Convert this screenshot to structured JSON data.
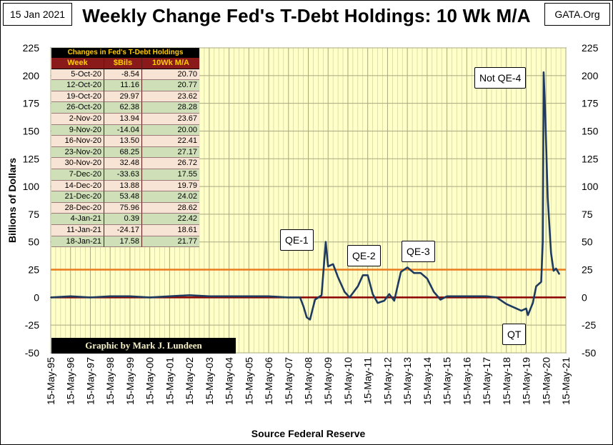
{
  "header": {
    "date": "15 Jan 2021",
    "title": "Weekly Change Fed's T-Debt Holdings: 10 Wk M/A",
    "source_site": "GATA.Org"
  },
  "table": {
    "title": "Changes in Fed's T-Debt Holdings",
    "columns": [
      "Week",
      "$Bils",
      "10Wk M/A"
    ],
    "rows": [
      [
        "5-Oct-20",
        "-8.54",
        "20.70"
      ],
      [
        "12-Oct-20",
        "11.16",
        "20.77"
      ],
      [
        "19-Oct-20",
        "29.97",
        "23.62"
      ],
      [
        "26-Oct-20",
        "62.38",
        "28.28"
      ],
      [
        "2-Nov-20",
        "13.94",
        "23.67"
      ],
      [
        "9-Nov-20",
        "-14.04",
        "20.00"
      ],
      [
        "16-Nov-20",
        "13.50",
        "22.41"
      ],
      [
        "23-Nov-20",
        "68.25",
        "27.17"
      ],
      [
        "30-Nov-20",
        "32.48",
        "26.72"
      ],
      [
        "7-Dec-20",
        "-33.63",
        "17.55"
      ],
      [
        "14-Dec-20",
        "13.88",
        "19.79"
      ],
      [
        "21-Dec-20",
        "53.48",
        "24.02"
      ],
      [
        "28-Dec-20",
        "75.96",
        "28.62"
      ],
      [
        "4-Jan-21",
        "0.39",
        "22.42"
      ],
      [
        "11-Jan-21",
        "-24.17",
        "18.61"
      ],
      [
        "18-Jan-21",
        "17.58",
        "21.77"
      ]
    ]
  },
  "annotations": {
    "qe1": "QE-1",
    "qe2": "QE-2",
    "qe3": "QE-3",
    "qe4": "Not QE-4",
    "qt": "QT"
  },
  "credit": "Graphic by Mark J. Lundeen",
  "colors": {
    "plot_bg": "#ffffc8",
    "grid": "#c8c8a0",
    "series": "#1f3a5f",
    "ref_line_25": "#e87c1e",
    "zero_line": "#8b0000"
  },
  "chart_data": {
    "type": "line",
    "title": "Weekly Change Fed's T-Debt Holdings: 10 Wk M/A",
    "xlabel": "Source Federal Reserve",
    "ylabel": "Billions  of  Dollars",
    "ylim": [
      -50,
      225
    ],
    "yticks": [
      -50,
      -25,
      0,
      25,
      50,
      75,
      100,
      125,
      150,
      175,
      200,
      225
    ],
    "xticks": [
      "15-May-95",
      "15-May-96",
      "15-May-97",
      "15-May-98",
      "15-May-99",
      "15-May-00",
      "15-May-01",
      "15-May-02",
      "15-May-03",
      "15-May-04",
      "15-May-05",
      "15-May-06",
      "15-May-07",
      "15-May-08",
      "15-May-09",
      "15-May-10",
      "15-May-11",
      "15-May-12",
      "15-May-13",
      "15-May-14",
      "15-May-15",
      "15-May-16",
      "15-May-17",
      "15-May-18",
      "15-May-19",
      "15-May-20",
      "15-May-21"
    ],
    "grid": true,
    "reference_lines": [
      25,
      0
    ],
    "series": [
      {
        "values": [
          [
            "1995-05-15",
            0
          ],
          [
            "1996-05-15",
            1
          ],
          [
            "1997-05-15",
            0
          ],
          [
            "1998-05-15",
            1
          ],
          [
            "1999-05-15",
            1
          ],
          [
            "2000-05-15",
            0
          ],
          [
            "2001-05-15",
            1
          ],
          [
            "2002-05-15",
            2
          ],
          [
            "2003-05-15",
            1
          ],
          [
            "2004-05-15",
            1
          ],
          [
            "2005-05-15",
            1
          ],
          [
            "2006-05-15",
            1
          ],
          [
            "2007-05-15",
            0
          ],
          [
            "2007-12-15",
            0
          ],
          [
            "2008-02-15",
            -8
          ],
          [
            "2008-04-15",
            -18
          ],
          [
            "2008-06-15",
            -20
          ],
          [
            "2008-09-15",
            -2
          ],
          [
            "2009-01-15",
            2
          ],
          [
            "2009-04-01",
            50
          ],
          [
            "2009-05-15",
            28
          ],
          [
            "2009-08-15",
            30
          ],
          [
            "2009-11-15",
            18
          ],
          [
            "2010-03-15",
            5
          ],
          [
            "2010-06-15",
            0
          ],
          [
            "2010-11-15",
            10
          ],
          [
            "2011-02-15",
            20
          ],
          [
            "2011-05-15",
            20
          ],
          [
            "2011-08-15",
            3
          ],
          [
            "2011-11-15",
            -5
          ],
          [
            "2012-03-15",
            -3
          ],
          [
            "2012-06-15",
            3
          ],
          [
            "2012-09-15",
            -3
          ],
          [
            "2013-01-15",
            23
          ],
          [
            "2013-05-15",
            27
          ],
          [
            "2013-09-15",
            22
          ],
          [
            "2014-01-15",
            22
          ],
          [
            "2014-05-15",
            17
          ],
          [
            "2014-09-15",
            5
          ],
          [
            "2015-01-15",
            -2
          ],
          [
            "2015-05-15",
            1
          ],
          [
            "2016-05-15",
            1
          ],
          [
            "2017-05-15",
            1
          ],
          [
            "2017-11-15",
            0
          ],
          [
            "2018-05-15",
            -6
          ],
          [
            "2018-11-15",
            -10
          ],
          [
            "2019-02-15",
            -12
          ],
          [
            "2019-05-15",
            -10
          ],
          [
            "2019-06-15",
            -16
          ],
          [
            "2019-09-15",
            -5
          ],
          [
            "2019-11-15",
            10
          ],
          [
            "2020-02-15",
            14
          ],
          [
            "2020-03-15",
            50
          ],
          [
            "2020-04-01",
            203
          ],
          [
            "2020-05-01",
            165
          ],
          [
            "2020-06-15",
            90
          ],
          [
            "2020-08-15",
            40
          ],
          [
            "2020-10-01",
            24
          ],
          [
            "2020-11-15",
            26
          ],
          [
            "2021-01-15",
            21
          ]
        ]
      }
    ]
  }
}
